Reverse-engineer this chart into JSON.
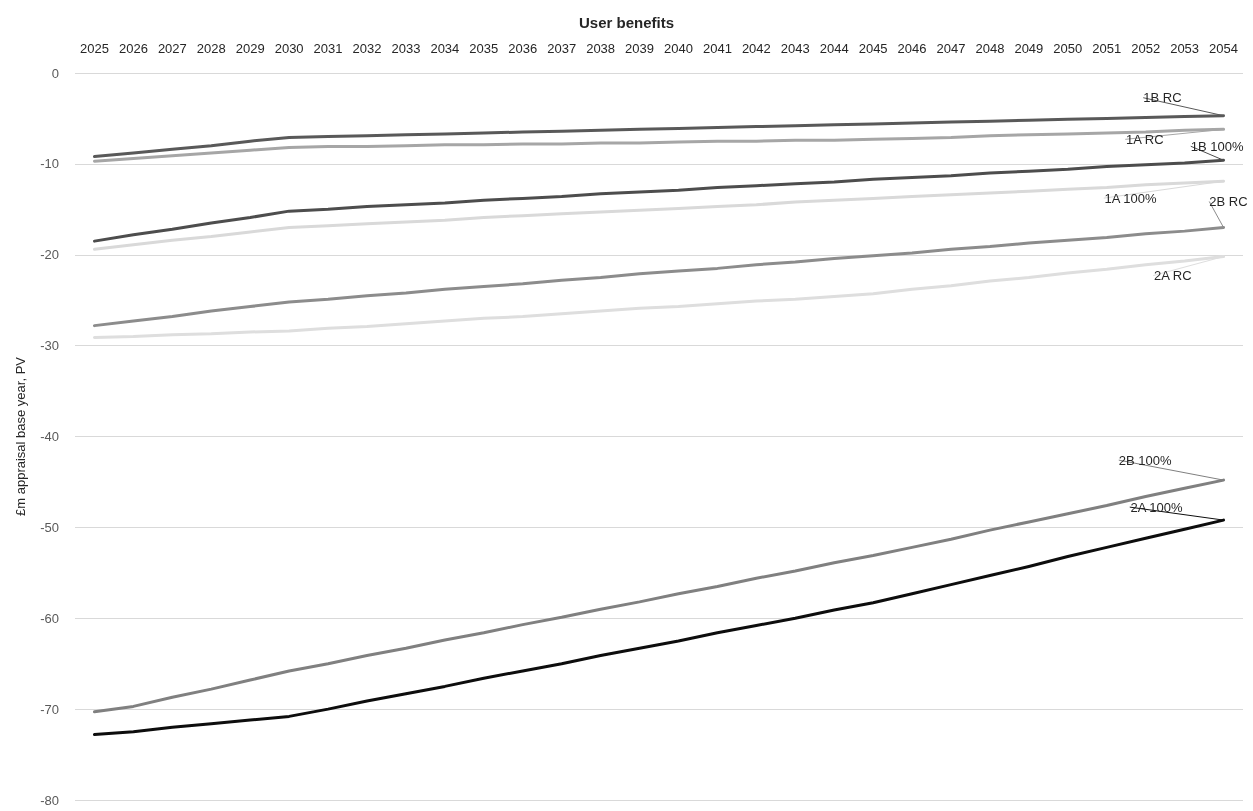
{
  "chart_data": {
    "type": "line",
    "title": "User benefits",
    "ylabel": "£m appraisal base year, PV",
    "categories": [
      "2025",
      "2026",
      "2027",
      "2028",
      "2029",
      "2030",
      "2031",
      "2032",
      "2033",
      "2034",
      "2035",
      "2036",
      "2037",
      "2038",
      "2039",
      "2040",
      "2041",
      "2042",
      "2043",
      "2044",
      "2045",
      "2046",
      "2047",
      "2048",
      "2049",
      "2050",
      "2051",
      "2052",
      "2053",
      "2054"
    ],
    "ylim": [
      -80,
      0
    ],
    "yticks": [
      -80,
      -70,
      -60,
      -50,
      -40,
      -30,
      -20,
      -10,
      0
    ],
    "grid": "y",
    "legend": false,
    "marker": "none",
    "line_style": "solid",
    "series": [
      {
        "name": "1B RC",
        "color": "#595959",
        "values": [
          -9.2,
          -8.8,
          -8.4,
          -8.0,
          -7.5,
          -7.1,
          -7.0,
          -6.9,
          -6.8,
          -6.7,
          -6.6,
          -6.5,
          -6.4,
          -6.3,
          -6.2,
          -6.1,
          -6.0,
          -5.9,
          -5.8,
          -5.7,
          -5.6,
          -5.5,
          -5.4,
          -5.3,
          -5.2,
          -5.1,
          -5.0,
          -4.9,
          -4.8,
          -4.7
        ]
      },
      {
        "name": "1A RC",
        "color": "#a6a6a6",
        "values": [
          -9.7,
          -9.4,
          -9.1,
          -8.8,
          -8.5,
          -8.2,
          -8.1,
          -8.1,
          -8.0,
          -7.9,
          -7.9,
          -7.8,
          -7.8,
          -7.7,
          -7.7,
          -7.6,
          -7.5,
          -7.5,
          -7.4,
          -7.4,
          -7.3,
          -7.2,
          -7.1,
          -6.9,
          -6.8,
          -6.7,
          -6.6,
          -6.5,
          -6.3,
          -6.2
        ]
      },
      {
        "name": "1B 100%",
        "color": "#4d4d4d",
        "values": [
          -18.5,
          -17.8,
          -17.2,
          -16.5,
          -15.9,
          -15.2,
          -15.0,
          -14.7,
          -14.5,
          -14.3,
          -14.0,
          -13.8,
          -13.6,
          -13.3,
          -13.1,
          -12.9,
          -12.6,
          -12.4,
          -12.2,
          -12.0,
          -11.7,
          -11.5,
          -11.3,
          -11.0,
          -10.8,
          -10.6,
          -10.3,
          -10.1,
          -9.9,
          -9.6
        ]
      },
      {
        "name": "1A 100%",
        "color": "#d9d9d9",
        "values": [
          -19.4,
          -18.9,
          -18.4,
          -18.0,
          -17.5,
          -17.0,
          -16.8,
          -16.6,
          -16.4,
          -16.2,
          -15.9,
          -15.7,
          -15.5,
          -15.3,
          -15.1,
          -14.9,
          -14.7,
          -14.5,
          -14.2,
          -14.0,
          -13.8,
          -13.6,
          -13.4,
          -13.2,
          -13.0,
          -12.8,
          -12.6,
          -12.3,
          -12.1,
          -11.9
        ]
      },
      {
        "name": "2B RC",
        "color": "#8c8c8c",
        "values": [
          -27.8,
          -27.3,
          -26.8,
          -26.2,
          -25.7,
          -25.2,
          -24.9,
          -24.5,
          -24.2,
          -23.8,
          -23.5,
          -23.2,
          -22.8,
          -22.5,
          -22.1,
          -21.8,
          -21.5,
          -21.1,
          -20.8,
          -20.4,
          -20.1,
          -19.8,
          -19.4,
          -19.1,
          -18.7,
          -18.4,
          -18.1,
          -17.7,
          -17.4,
          -17.0
        ]
      },
      {
        "name": "2A RC",
        "color": "#dedede",
        "values": [
          -29.1,
          -29.0,
          -28.8,
          -28.7,
          -28.5,
          -28.4,
          -28.1,
          -27.9,
          -27.6,
          -27.3,
          -27.0,
          -26.8,
          -26.5,
          -26.2,
          -25.9,
          -25.7,
          -25.4,
          -25.1,
          -24.9,
          -24.6,
          -24.3,
          -23.8,
          -23.4,
          -22.9,
          -22.5,
          -22.0,
          -21.6,
          -21.1,
          -20.7,
          -20.2
        ]
      },
      {
        "name": "2B 100%",
        "color": "#808080",
        "values": [
          -70.3,
          -69.7,
          -68.7,
          -67.8,
          -66.8,
          -65.8,
          -65.0,
          -64.1,
          -63.3,
          -62.4,
          -61.6,
          -60.7,
          -59.9,
          -59.0,
          -58.2,
          -57.3,
          -56.5,
          -55.6,
          -54.8,
          -53.9,
          -53.1,
          -52.2,
          -51.3,
          -50.3,
          -49.4,
          -48.5,
          -47.6,
          -46.6,
          -45.7,
          -44.8
        ]
      },
      {
        "name": "2A 100%",
        "color": "#0d0d0d",
        "values": [
          -72.8,
          -72.5,
          -72.0,
          -71.6,
          -71.2,
          -70.8,
          -70.0,
          -69.1,
          -68.3,
          -67.5,
          -66.6,
          -65.8,
          -65.0,
          -64.1,
          -63.3,
          -62.5,
          -61.6,
          -60.8,
          -60.0,
          -59.1,
          -58.3,
          -57.3,
          -56.3,
          -55.3,
          -54.3,
          -53.2,
          -52.2,
          -51.2,
          -50.2,
          -49.2
        ]
      }
    ]
  }
}
